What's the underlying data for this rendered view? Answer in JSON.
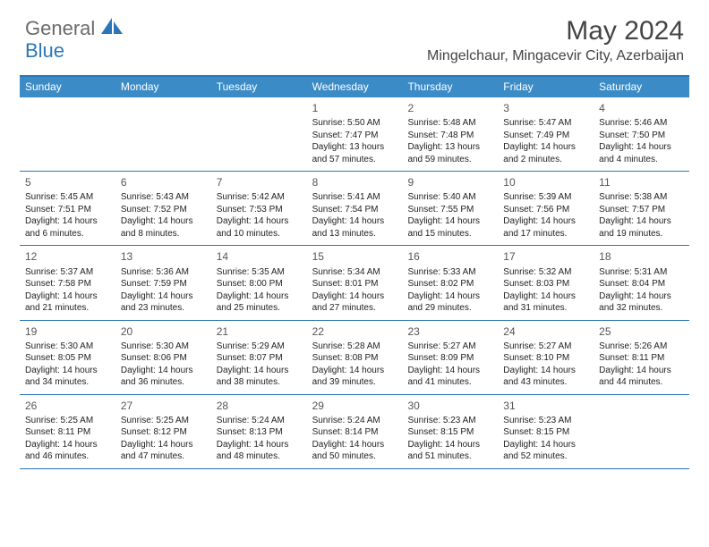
{
  "brand": {
    "part1": "General",
    "part2": "Blue"
  },
  "title": "May 2024",
  "location": "Mingelchaur, Mingacevir City, Azerbaijan",
  "colors": {
    "header_bar": "#3b8bc7",
    "border": "#2a77b8",
    "text": "#333333",
    "brand_gray": "#6b6b6b",
    "brand_blue": "#2a77b8",
    "background": "#ffffff"
  },
  "day_names": [
    "Sunday",
    "Monday",
    "Tuesday",
    "Wednesday",
    "Thursday",
    "Friday",
    "Saturday"
  ],
  "weeks": [
    [
      null,
      null,
      null,
      {
        "n": "1",
        "sr": "Sunrise: 5:50 AM",
        "ss": "Sunset: 7:47 PM",
        "d1": "Daylight: 13 hours",
        "d2": "and 57 minutes."
      },
      {
        "n": "2",
        "sr": "Sunrise: 5:48 AM",
        "ss": "Sunset: 7:48 PM",
        "d1": "Daylight: 13 hours",
        "d2": "and 59 minutes."
      },
      {
        "n": "3",
        "sr": "Sunrise: 5:47 AM",
        "ss": "Sunset: 7:49 PM",
        "d1": "Daylight: 14 hours",
        "d2": "and 2 minutes."
      },
      {
        "n": "4",
        "sr": "Sunrise: 5:46 AM",
        "ss": "Sunset: 7:50 PM",
        "d1": "Daylight: 14 hours",
        "d2": "and 4 minutes."
      }
    ],
    [
      {
        "n": "5",
        "sr": "Sunrise: 5:45 AM",
        "ss": "Sunset: 7:51 PM",
        "d1": "Daylight: 14 hours",
        "d2": "and 6 minutes."
      },
      {
        "n": "6",
        "sr": "Sunrise: 5:43 AM",
        "ss": "Sunset: 7:52 PM",
        "d1": "Daylight: 14 hours",
        "d2": "and 8 minutes."
      },
      {
        "n": "7",
        "sr": "Sunrise: 5:42 AM",
        "ss": "Sunset: 7:53 PM",
        "d1": "Daylight: 14 hours",
        "d2": "and 10 minutes."
      },
      {
        "n": "8",
        "sr": "Sunrise: 5:41 AM",
        "ss": "Sunset: 7:54 PM",
        "d1": "Daylight: 14 hours",
        "d2": "and 13 minutes."
      },
      {
        "n": "9",
        "sr": "Sunrise: 5:40 AM",
        "ss": "Sunset: 7:55 PM",
        "d1": "Daylight: 14 hours",
        "d2": "and 15 minutes."
      },
      {
        "n": "10",
        "sr": "Sunrise: 5:39 AM",
        "ss": "Sunset: 7:56 PM",
        "d1": "Daylight: 14 hours",
        "d2": "and 17 minutes."
      },
      {
        "n": "11",
        "sr": "Sunrise: 5:38 AM",
        "ss": "Sunset: 7:57 PM",
        "d1": "Daylight: 14 hours",
        "d2": "and 19 minutes."
      }
    ],
    [
      {
        "n": "12",
        "sr": "Sunrise: 5:37 AM",
        "ss": "Sunset: 7:58 PM",
        "d1": "Daylight: 14 hours",
        "d2": "and 21 minutes."
      },
      {
        "n": "13",
        "sr": "Sunrise: 5:36 AM",
        "ss": "Sunset: 7:59 PM",
        "d1": "Daylight: 14 hours",
        "d2": "and 23 minutes."
      },
      {
        "n": "14",
        "sr": "Sunrise: 5:35 AM",
        "ss": "Sunset: 8:00 PM",
        "d1": "Daylight: 14 hours",
        "d2": "and 25 minutes."
      },
      {
        "n": "15",
        "sr": "Sunrise: 5:34 AM",
        "ss": "Sunset: 8:01 PM",
        "d1": "Daylight: 14 hours",
        "d2": "and 27 minutes."
      },
      {
        "n": "16",
        "sr": "Sunrise: 5:33 AM",
        "ss": "Sunset: 8:02 PM",
        "d1": "Daylight: 14 hours",
        "d2": "and 29 minutes."
      },
      {
        "n": "17",
        "sr": "Sunrise: 5:32 AM",
        "ss": "Sunset: 8:03 PM",
        "d1": "Daylight: 14 hours",
        "d2": "and 31 minutes."
      },
      {
        "n": "18",
        "sr": "Sunrise: 5:31 AM",
        "ss": "Sunset: 8:04 PM",
        "d1": "Daylight: 14 hours",
        "d2": "and 32 minutes."
      }
    ],
    [
      {
        "n": "19",
        "sr": "Sunrise: 5:30 AM",
        "ss": "Sunset: 8:05 PM",
        "d1": "Daylight: 14 hours",
        "d2": "and 34 minutes."
      },
      {
        "n": "20",
        "sr": "Sunrise: 5:30 AM",
        "ss": "Sunset: 8:06 PM",
        "d1": "Daylight: 14 hours",
        "d2": "and 36 minutes."
      },
      {
        "n": "21",
        "sr": "Sunrise: 5:29 AM",
        "ss": "Sunset: 8:07 PM",
        "d1": "Daylight: 14 hours",
        "d2": "and 38 minutes."
      },
      {
        "n": "22",
        "sr": "Sunrise: 5:28 AM",
        "ss": "Sunset: 8:08 PM",
        "d1": "Daylight: 14 hours",
        "d2": "and 39 minutes."
      },
      {
        "n": "23",
        "sr": "Sunrise: 5:27 AM",
        "ss": "Sunset: 8:09 PM",
        "d1": "Daylight: 14 hours",
        "d2": "and 41 minutes."
      },
      {
        "n": "24",
        "sr": "Sunrise: 5:27 AM",
        "ss": "Sunset: 8:10 PM",
        "d1": "Daylight: 14 hours",
        "d2": "and 43 minutes."
      },
      {
        "n": "25",
        "sr": "Sunrise: 5:26 AM",
        "ss": "Sunset: 8:11 PM",
        "d1": "Daylight: 14 hours",
        "d2": "and 44 minutes."
      }
    ],
    [
      {
        "n": "26",
        "sr": "Sunrise: 5:25 AM",
        "ss": "Sunset: 8:11 PM",
        "d1": "Daylight: 14 hours",
        "d2": "and 46 minutes."
      },
      {
        "n": "27",
        "sr": "Sunrise: 5:25 AM",
        "ss": "Sunset: 8:12 PM",
        "d1": "Daylight: 14 hours",
        "d2": "and 47 minutes."
      },
      {
        "n": "28",
        "sr": "Sunrise: 5:24 AM",
        "ss": "Sunset: 8:13 PM",
        "d1": "Daylight: 14 hours",
        "d2": "and 48 minutes."
      },
      {
        "n": "29",
        "sr": "Sunrise: 5:24 AM",
        "ss": "Sunset: 8:14 PM",
        "d1": "Daylight: 14 hours",
        "d2": "and 50 minutes."
      },
      {
        "n": "30",
        "sr": "Sunrise: 5:23 AM",
        "ss": "Sunset: 8:15 PM",
        "d1": "Daylight: 14 hours",
        "d2": "and 51 minutes."
      },
      {
        "n": "31",
        "sr": "Sunrise: 5:23 AM",
        "ss": "Sunset: 8:15 PM",
        "d1": "Daylight: 14 hours",
        "d2": "and 52 minutes."
      },
      null
    ]
  ]
}
